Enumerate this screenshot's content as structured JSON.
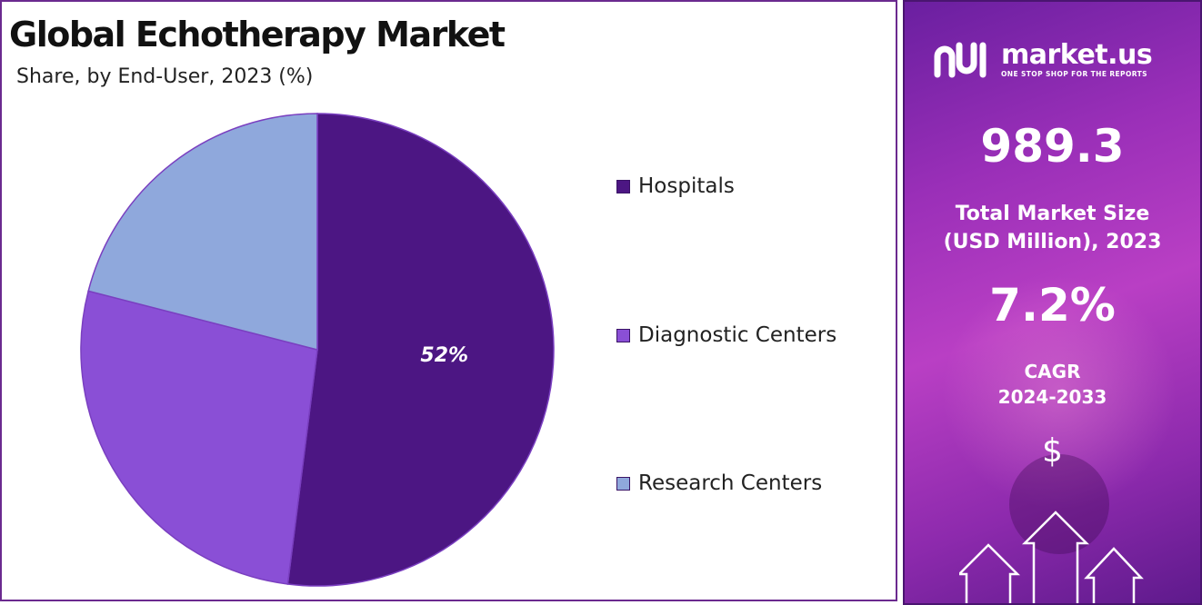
{
  "title": "Global Echotherapy Market",
  "subtitle": "Share, by End-User, 2023 (%)",
  "colors": {
    "hospitals": "#4c1683",
    "diagnostic_centers": "#8a4fd6",
    "research_centers": "#8fa8dc",
    "panel_border": "#6b2a8f"
  },
  "chart_data": {
    "type": "pie",
    "title": "Global Echotherapy Market",
    "subtitle": "Share, by End-User, 2023 (%)",
    "categories": [
      "Hospitals",
      "Diagnostic Centers",
      "Research Centers"
    ],
    "values": [
      52,
      27,
      21
    ],
    "data_labels": [
      "52%",
      "",
      ""
    ],
    "legend": "right",
    "series": [
      {
        "values": [
          52,
          27,
          21
        ]
      }
    ]
  },
  "legend": {
    "items": [
      {
        "label": "Hospitals",
        "color": "#4c1683"
      },
      {
        "label": "Diagnostic Centers",
        "color": "#8a4fd6"
      },
      {
        "label": "Research Centers",
        "color": "#8fa8dc"
      }
    ]
  },
  "sidebar": {
    "brand_name": "market.us",
    "brand_tagline": "ONE STOP SHOP FOR THE REPORTS",
    "market_size_value": "989.3",
    "market_size_label_line1": "Total Market Size",
    "market_size_label_line2": "(USD Million), 2023",
    "cagr_value": "7.2%",
    "cagr_label_line1": "CAGR",
    "cagr_label_line2": "2024-2033",
    "currency_symbol": "$",
    "icons": [
      "market-us-logo-icon",
      "dollar-icon",
      "growth-arrows-icon"
    ]
  }
}
